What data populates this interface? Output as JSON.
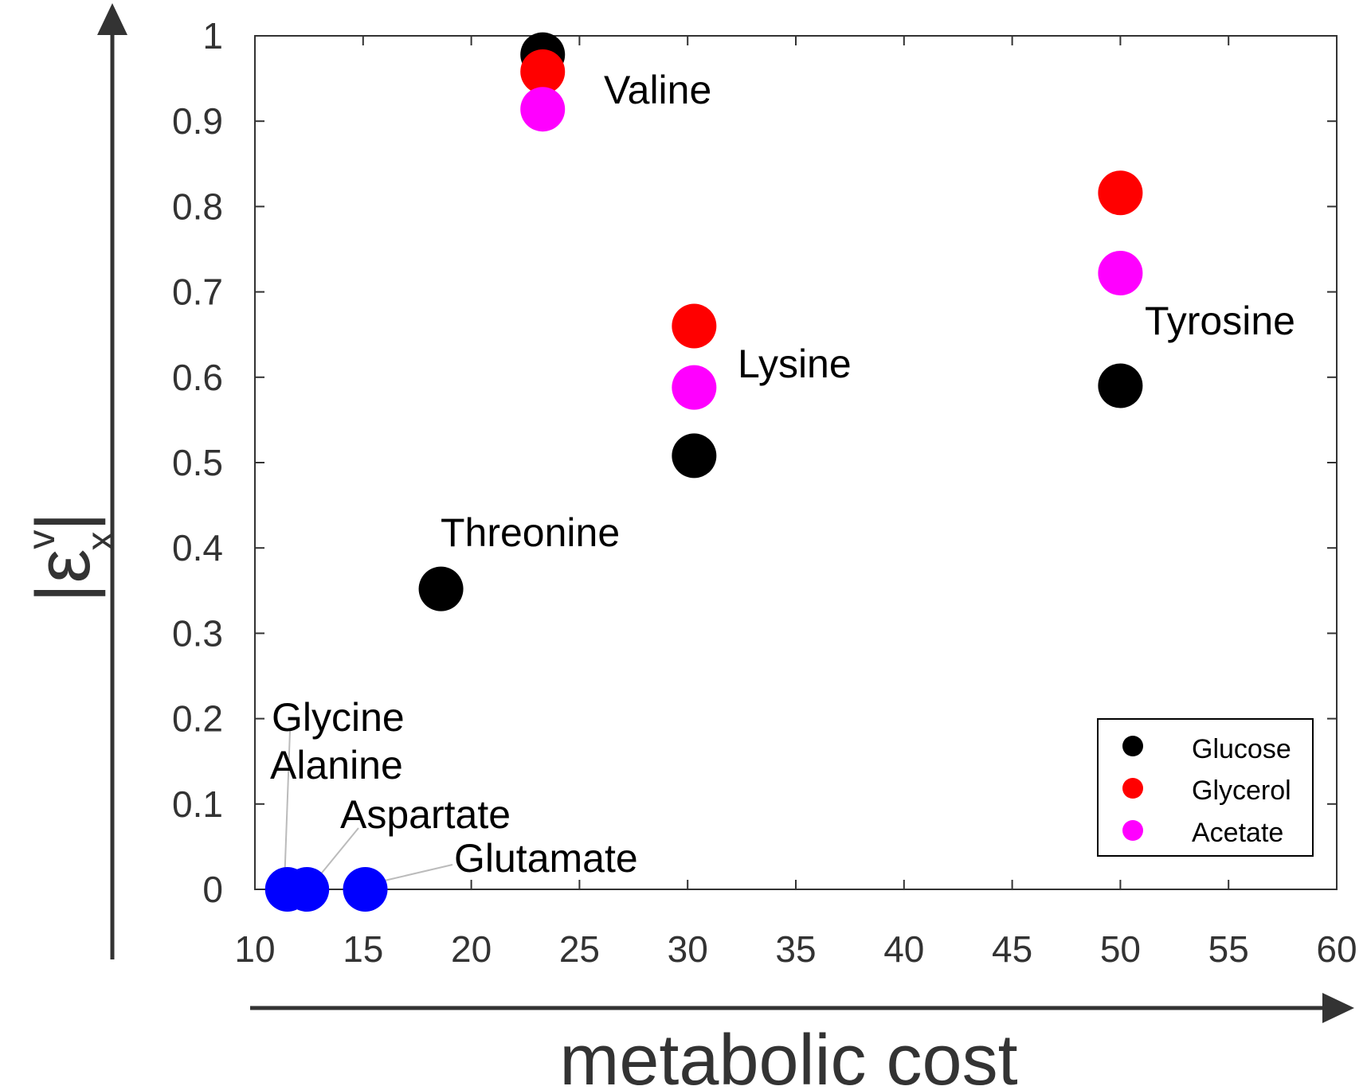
{
  "chart_data": {
    "type": "scatter",
    "xlabel": "metabolic cost",
    "ylabel": "|ε",
    "ylabel_sup": "v",
    "ylabel_sub": "x",
    "ylabel_close": "|",
    "xlim": [
      10,
      60
    ],
    "ylim": [
      0,
      1
    ],
    "xticks": [
      10,
      15,
      20,
      25,
      30,
      35,
      40,
      45,
      50,
      55,
      60
    ],
    "yticks": [
      0,
      0.1,
      0.2,
      0.3,
      0.4,
      0.5,
      0.6,
      0.7,
      0.8,
      0.9,
      1
    ],
    "xtick_labels": [
      "10",
      "15",
      "20",
      "25",
      "30",
      "35",
      "40",
      "45",
      "50",
      "55",
      "60"
    ],
    "ytick_labels": [
      "0",
      "0.1",
      "0.2",
      "0.3",
      "0.4",
      "0.5",
      "0.6",
      "0.7",
      "0.8",
      "0.9",
      "1"
    ],
    "grid": false,
    "legend_position": "bottom-right",
    "series": [
      {
        "name": "Glucose",
        "color": "#000000",
        "points": [
          {
            "x": 23.3,
            "y": 0.978
          },
          {
            "x": 18.6,
            "y": 0.352
          },
          {
            "x": 30.3,
            "y": 0.508
          },
          {
            "x": 50.0,
            "y": 0.59
          }
        ]
      },
      {
        "name": "Glycerol",
        "color": "#ff0000",
        "points": [
          {
            "x": 23.3,
            "y": 0.958
          },
          {
            "x": 30.3,
            "y": 0.66
          },
          {
            "x": 50.0,
            "y": 0.816
          }
        ]
      },
      {
        "name": "Acetate",
        "color": "#ff00ff",
        "points": [
          {
            "x": 23.3,
            "y": 0.914
          },
          {
            "x": 30.3,
            "y": 0.588
          },
          {
            "x": 50.0,
            "y": 0.722
          }
        ]
      }
    ],
    "low_points": {
      "color": "#0000ff",
      "points": [
        {
          "x": 11.5,
          "y": 0
        },
        {
          "x": 12.4,
          "y": 0
        },
        {
          "x": 15.1,
          "y": 0
        }
      ]
    },
    "annotations": [
      {
        "text": "Valine"
      },
      {
        "text": "Lysine"
      },
      {
        "text": "Tyrosine"
      },
      {
        "text": "Threonine"
      },
      {
        "text": "Glycine"
      },
      {
        "text": "Alanine"
      },
      {
        "text": "Aspartate"
      },
      {
        "text": "Glutamate"
      }
    ]
  }
}
